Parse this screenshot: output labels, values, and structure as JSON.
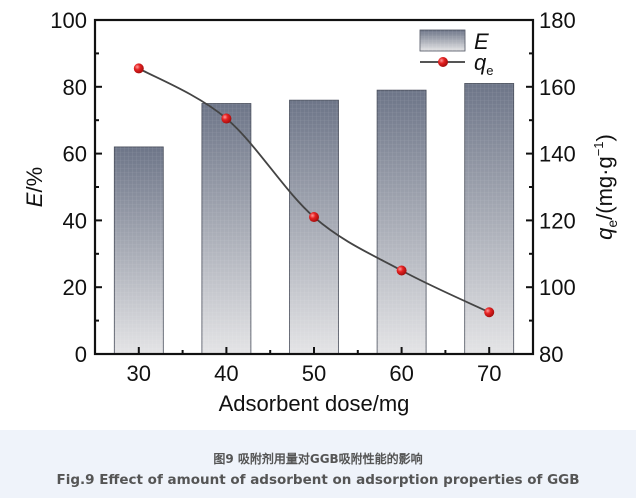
{
  "chart_data": {
    "type": "bar",
    "categories": [
      "30",
      "40",
      "50",
      "60",
      "70"
    ],
    "xlabel": "Adsorbent dose/mg",
    "series": [
      {
        "name": "E",
        "type": "bar",
        "axis": "left",
        "values": [
          62,
          75,
          76,
          79,
          81
        ]
      },
      {
        "name": "q_e",
        "type": "line",
        "axis": "right",
        "values": [
          165.5,
          150.5,
          121,
          105,
          92.5
        ],
        "color": "#e02020"
      }
    ],
    "left_axis": {
      "label_main": "E",
      "label_unit": "/%",
      "ylim": [
        0,
        100
      ],
      "ticks": [
        "0",
        "20",
        "40",
        "60",
        "80",
        "100"
      ]
    },
    "right_axis": {
      "label_q": "q",
      "label_sub": "e",
      "label_unit": "/(mg·g",
      "label_sup": "−1",
      "label_close": ")",
      "ylim": [
        80,
        180
      ],
      "ticks": [
        "80",
        "100",
        "120",
        "140",
        "160",
        "180"
      ]
    },
    "legend": {
      "placement": "top-right",
      "entries": [
        {
          "label": "E",
          "marker": "bar"
        },
        {
          "label": "q",
          "sub": "e",
          "marker": "line-dot"
        }
      ]
    },
    "grid": false
  },
  "caption": {
    "cn": "图9 吸附剂用量对GGB吸附性能的影响",
    "en": "Fig.9 Effect of amount of adsorbent on adsorption properties of GGB"
  }
}
